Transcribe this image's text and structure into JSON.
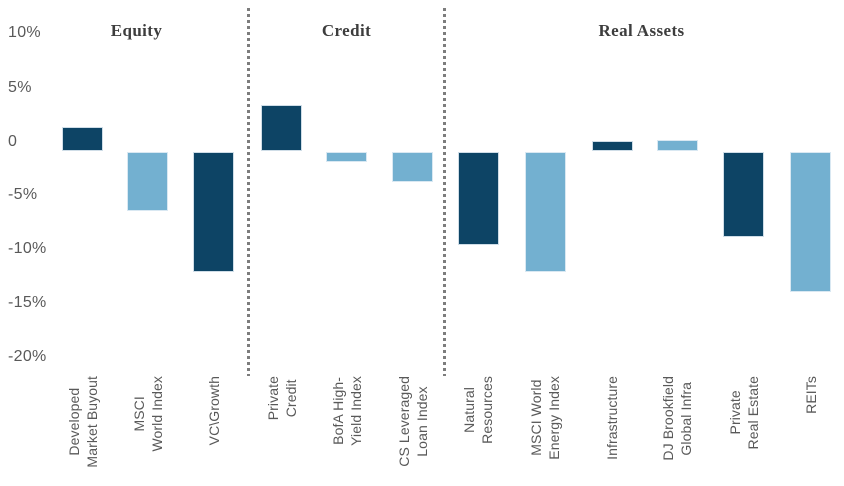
{
  "chart_data": {
    "type": "bar",
    "title": "",
    "xlabel": "",
    "ylabel": "",
    "unit": "%",
    "grid": false,
    "legend": null,
    "y_axis": {
      "min": -20,
      "max": 10,
      "ticks": [
        {
          "label": "10%",
          "value": 10
        },
        {
          "label": "5%",
          "value": 5
        },
        {
          "label": "0",
          "value": 0
        },
        {
          "label": "-5%",
          "value": -5
        },
        {
          "label": "-10%",
          "value": -10
        },
        {
          "label": "-15%",
          "value": -15
        },
        {
          "label": "-20%",
          "value": -20
        }
      ]
    },
    "sections": [
      {
        "label": "Equity",
        "bar_count": 3
      },
      {
        "label": "Credit",
        "bar_count": 3
      },
      {
        "label": "Real Assets",
        "bar_count": 6
      }
    ],
    "bars": [
      {
        "section": "Equity",
        "label": "Developed Market Buyout",
        "label_lines": [
          "Developed",
          "Market Buyout"
        ],
        "value": 2.3,
        "color_key": "dark_navy"
      },
      {
        "section": "Equity",
        "label": "MSCI World Index",
        "label_lines": [
          "MSCI",
          "World Index"
        ],
        "value": -5.5,
        "color_key": "light_blue"
      },
      {
        "section": "Equity",
        "label": "VC\\Growth",
        "label_lines": [
          "VC\\Growth"
        ],
        "value": -11.2,
        "color_key": "dark_navy"
      },
      {
        "section": "Credit",
        "label": "Private Credit",
        "label_lines": [
          "Private",
          "Credit"
        ],
        "value": 4.3,
        "color_key": "dark_navy"
      },
      {
        "section": "Credit",
        "label": "BofA High-Yield Index",
        "label_lines": [
          "BofA High-",
          "Yield Index"
        ],
        "value": -1.0,
        "color_key": "light_blue"
      },
      {
        "section": "Credit",
        "label": "CS Leveraged Loan Index",
        "label_lines": [
          "CS Leveraged",
          "Loan Index"
        ],
        "value": -2.8,
        "color_key": "light_blue"
      },
      {
        "section": "Real Assets",
        "label": "Natural Resources",
        "label_lines": [
          "Natural",
          "Resources"
        ],
        "value": -8.7,
        "color_key": "dark_navy"
      },
      {
        "section": "Real Assets",
        "label": "MSCI World Energy Index",
        "label_lines": [
          "MSCI World",
          "Energy Index"
        ],
        "value": -11.2,
        "color_key": "light_blue"
      },
      {
        "section": "Real Assets",
        "label": "Infrastructure",
        "label_lines": [
          "Infrastructure"
        ],
        "value": 1.0,
        "color_key": "dark_navy"
      },
      {
        "section": "Real Assets",
        "label": "DJ Brookfield Global Infra",
        "label_lines": [
          "DJ Brookfield",
          "Global Infra"
        ],
        "value": 1.1,
        "color_key": "light_blue"
      },
      {
        "section": "Real Assets",
        "label": "Private Real Estate",
        "label_lines": [
          "Private",
          "Real Estate"
        ],
        "value": -8.0,
        "color_key": "dark_navy"
      },
      {
        "section": "Real Assets",
        "label": "REITs",
        "label_lines": [
          "REITs"
        ],
        "value": -13.1,
        "color_key": "light_blue"
      }
    ]
  },
  "colors": {
    "dark_navy": "#0d4465",
    "light_blue": "#73b0d0",
    "axis_text": "#595959",
    "header_text": "#3d3d3d",
    "divider": "#7d7d7d",
    "background": "#ffffff"
  }
}
